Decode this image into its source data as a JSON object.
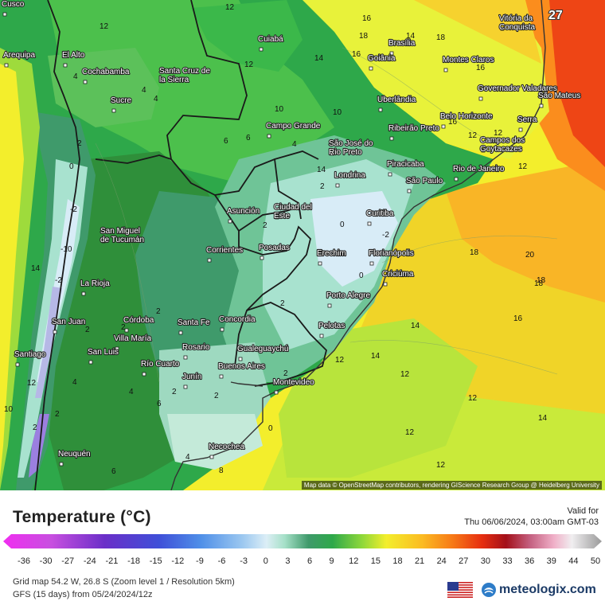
{
  "map": {
    "attribution": "Map data © OpenStreetMap contributors, rendering GIScience Research Group @ Heidelberg University",
    "cities": [
      {
        "name": "Cusco"
      },
      {
        "name": "Arequipa"
      },
      {
        "name": "El Alto"
      },
      {
        "name": "Cochabamba"
      },
      {
        "name": "Santa Cruz de la Sierra"
      },
      {
        "name": "Sucre"
      },
      {
        "name": "Cuiabá"
      },
      {
        "name": "Brasília"
      },
      {
        "name": "Goiânia"
      },
      {
        "name": "Vitória da Conquista"
      },
      {
        "name": "Montes Claros"
      },
      {
        "name": "Governador Valadares"
      },
      {
        "name": "Uberlândia"
      },
      {
        "name": "São Mateus"
      },
      {
        "name": "Belo Horizonte"
      },
      {
        "name": "Serra"
      },
      {
        "name": "Campo Grande"
      },
      {
        "name": "Ribeirão Preto"
      },
      {
        "name": "São José do Rio Preto"
      },
      {
        "name": "Campos dos Goytacazes"
      },
      {
        "name": "Piracicaba"
      },
      {
        "name": "Rio de Janeiro"
      },
      {
        "name": "Londrina"
      },
      {
        "name": "São Paulo"
      },
      {
        "name": "Asunción"
      },
      {
        "name": "Ciudad del Este"
      },
      {
        "name": "Curitiba"
      },
      {
        "name": "San Miguel de Tucumán"
      },
      {
        "name": "Corrientes"
      },
      {
        "name": "Posadas"
      },
      {
        "name": "Erechim"
      },
      {
        "name": "Florianópolis"
      },
      {
        "name": "Criciúma"
      },
      {
        "name": "La Rioja"
      },
      {
        "name": "Porto Alegre"
      },
      {
        "name": "Córdoba"
      },
      {
        "name": "Santa Fe"
      },
      {
        "name": "Concordia"
      },
      {
        "name": "San Juan"
      },
      {
        "name": "Villa María"
      },
      {
        "name": "Pelotas"
      },
      {
        "name": "Rosario"
      },
      {
        "name": "Santiago"
      },
      {
        "name": "San Luis"
      },
      {
        "name": "Gualeguaychú"
      },
      {
        "name": "Río Cuarto"
      },
      {
        "name": "Buenos Aires"
      },
      {
        "name": "Junín"
      },
      {
        "name": "Montevideo"
      },
      {
        "name": "Necochea"
      },
      {
        "name": "Neuquén"
      }
    ],
    "value_labels": [
      {
        "v": "12"
      },
      {
        "v": "12"
      },
      {
        "v": "12"
      },
      {
        "v": "14"
      },
      {
        "v": "16"
      },
      {
        "v": "14"
      },
      {
        "v": "18"
      },
      {
        "v": "16"
      },
      {
        "v": "16"
      },
      {
        "v": "10"
      },
      {
        "v": "10"
      },
      {
        "v": "14"
      },
      {
        "v": "4"
      },
      {
        "v": "4"
      },
      {
        "v": "6"
      },
      {
        "v": "4"
      },
      {
        "v": "2"
      },
      {
        "v": "0"
      },
      {
        "v": "-2"
      },
      {
        "v": "-10"
      },
      {
        "v": "-2"
      },
      {
        "v": "14"
      },
      {
        "v": "12"
      },
      {
        "v": "18"
      },
      {
        "v": "20"
      },
      {
        "v": "18"
      },
      {
        "v": "16"
      },
      {
        "v": "14"
      },
      {
        "v": "14"
      },
      {
        "v": "12"
      },
      {
        "v": "12"
      },
      {
        "v": "12"
      },
      {
        "v": "12"
      },
      {
        "v": "14"
      },
      {
        "v": "12"
      },
      {
        "v": "2"
      },
      {
        "v": "2"
      },
      {
        "v": "2"
      },
      {
        "v": "4"
      },
      {
        "v": "8"
      },
      {
        "v": "0"
      },
      {
        "v": "12"
      },
      {
        "v": "10"
      },
      {
        "v": "2"
      },
      {
        "v": "6"
      },
      {
        "v": "2"
      },
      {
        "v": "4"
      },
      {
        "v": "4"
      },
      {
        "v": "2"
      },
      {
        "v": "2"
      },
      {
        "v": "2"
      },
      {
        "v": "2"
      },
      {
        "v": "2"
      },
      {
        "v": "0"
      },
      {
        "v": "-2"
      },
      {
        "v": "0"
      },
      {
        "v": "12"
      },
      {
        "v": "18"
      },
      {
        "v": "18"
      },
      {
        "v": "16"
      },
      {
        "v": "12"
      },
      {
        "v": "6"
      },
      {
        "v": "6"
      },
      {
        "v": "4"
      },
      {
        "v": "2"
      }
    ],
    "big_value": "27"
  },
  "legend": {
    "title": "Temperature (°C)",
    "valid_label": "Valid for",
    "valid_time": "Thu 06/06/2024, 03:00am GMT-03",
    "scale_ticks": [
      "-36",
      "-30",
      "-27",
      "-24",
      "-21",
      "-18",
      "-15",
      "-12",
      "-9",
      "-6",
      "-3",
      "0",
      "3",
      "6",
      "9",
      "12",
      "15",
      "18",
      "21",
      "24",
      "27",
      "30",
      "33",
      "36",
      "39",
      "44",
      "50"
    ],
    "grid_info": "Grid map 54.2 W, 26.8 S (Zoom level 1 / Resolution 5km)",
    "model_info": "GFS (15 days) from  05/24/2024/12z",
    "brand_name": "meteologix.com",
    "colors": {
      "deep_green": "#2f8f3a",
      "green": "#2ea84a",
      "teal_green": "#3f9a6b",
      "pale_teal": "#a8e2cf",
      "ice": "#d8ecf7",
      "lime": "#a6df3a",
      "yellow": "#f1f12c",
      "orange": "#ff9d1c",
      "red": "#ee3b12"
    }
  }
}
